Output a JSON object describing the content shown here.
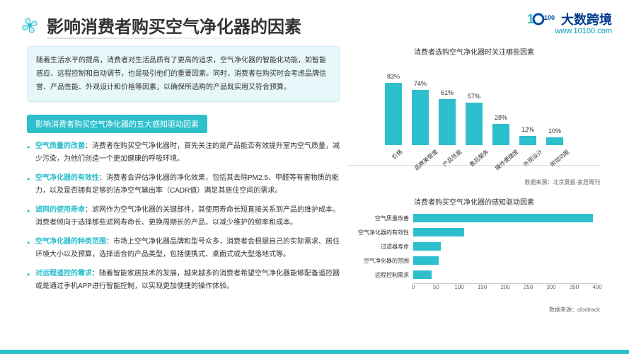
{
  "brand": {
    "name": "大数跨境",
    "url": "www.10100.com",
    "logo_color_blue": "#004a9c",
    "logo_color_teal": "#2dbfcc"
  },
  "page_title": "影响消费者购买空气净化器的因素",
  "intro_text": "随着生活水平的提高，消费者对生活品质有了更高的追求，空气净化器的智能化功能，如智能感应、远程控制和自动调节，也是吸引他们的重要因素。同时，消费者在购买时会考虑品牌信誉、产品性能、外观设计和价格等因素，以确保所选购的产品既实用又符合预算。",
  "section_label": "影响消费者购买空气净化器的五大感知驱动因素",
  "bullets": [
    {
      "title": "空气质量的改善",
      "body": "：消费者在购买空气净化器时，首先关注的是产品能否有效提升室内空气质量，减少污染，为他们创造一个更加健康的呼吸环境。"
    },
    {
      "title": "空气净化器的有效性",
      "body": "：消费者会评估净化器的净化效果，包括其去除PM2.5、甲醛等有害物质的能力，以及是否拥有足够的洁净空气输出率（CADR值）满足其居住空间的需求。"
    },
    {
      "title": "滤网的使用寿命",
      "body": "：滤网作为空气净化器的关键部件，其使用寿命长短直接关系到产品的维护成本。消费者倾向于选择那些滤网寿命长、更换周期长的产品，以减少维护的频率和成本。"
    },
    {
      "title": "空气净化器的种类范围",
      "body": "：市场上空气净化器品牌和型号众多，消费者会根据自己的实际需求、居住环境大小以及预算，选择适合的产品类型，包括便携式、桌面式或大型落地式等。"
    },
    {
      "title": "对远程遥控的需求",
      "body": "：随着智能家居技术的发展，越来越多的消费者希望空气净化器能够配备遥控器或是通过手机APP进行智能控制，以实现更加便捷的操作体验。"
    }
  ],
  "chart1": {
    "type": "bar",
    "title": "消费者选购空气净化器时关注哪些因素",
    "categories": [
      "价格",
      "品牌美誉度",
      "产品性能",
      "售后服务",
      "操作便捷度",
      "外观设计",
      "附加功能"
    ],
    "values": [
      83,
      74,
      61,
      57,
      28,
      12,
      10
    ],
    "value_suffix": "%",
    "bar_color": "#2dbfcc",
    "ylim": [
      0,
      100
    ],
    "source_label": "数据来源：",
    "source": "北京晨报·家居周刊"
  },
  "chart2": {
    "type": "bar-horizontal",
    "title": "消费者购买空气净化器的感知驱动因素",
    "labels": [
      "空气质量改善",
      "空气净化器的有效性",
      "过滤器寿命",
      "空气净化器的范围",
      "远程控制需求"
    ],
    "values": [
      390,
      110,
      60,
      55,
      40
    ],
    "xlim": [
      0,
      400
    ],
    "xtick_step": 50,
    "xticks": [
      0,
      50,
      100,
      150,
      200,
      250,
      300,
      350,
      400
    ],
    "bar_color": "#2dbfcc",
    "grid_color": "#eeeeee",
    "source_label": "数据来源：",
    "source": "clootrack"
  }
}
